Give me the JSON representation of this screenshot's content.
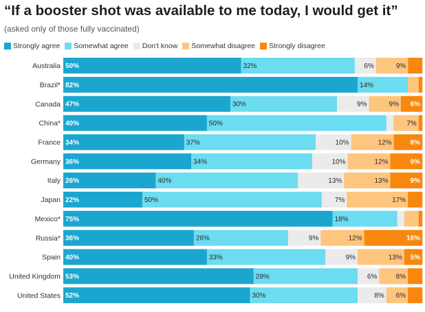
{
  "chart_data": {
    "type": "bar",
    "orientation": "horizontal",
    "stacked": "100%",
    "title": "“If a booster shot was available to me today, I would get it”",
    "subtitle": "(asked only of those fully vaccinated)",
    "legend_position": "top",
    "grid": false,
    "categories": [
      "Australia",
      "Brazil*",
      "Canada",
      "China*",
      "France",
      "Germany",
      "Italy",
      "Japan",
      "Mexico*",
      "Russia*",
      "Spain",
      "United Kingdom",
      "United States"
    ],
    "series": [
      {
        "name": "Strongly agree",
        "color": "#1ba6cf",
        "values": [
          50,
          82,
          47,
          40,
          34,
          36,
          26,
          22,
          75,
          36,
          40,
          53,
          52
        ],
        "labels": [
          "50%",
          "82%",
          "47%",
          "40%",
          "34%",
          "36%",
          "26%",
          "22%",
          "75%",
          "36%",
          "40%",
          "53%",
          "52%"
        ]
      },
      {
        "name": "Somewhat agree",
        "color": "#6cdcf0",
        "values": [
          32,
          14,
          30,
          50,
          37,
          34,
          40,
          50,
          18,
          26,
          33,
          29,
          30
        ],
        "labels": [
          "32%",
          "14%",
          "30%",
          "50%",
          "37%",
          "34%",
          "40%",
          "50%",
          "18%",
          "26%",
          "33%",
          "29%",
          "30%"
        ]
      },
      {
        "name": "Don't know",
        "color": "#ebebeb",
        "values": [
          6,
          0,
          9,
          2,
          10,
          10,
          13,
          7,
          2,
          9,
          9,
          6,
          8
        ],
        "labels": [
          "6%",
          "",
          "9%",
          "",
          "10%",
          "10%",
          "13%",
          "7%",
          "",
          "9%",
          "9%",
          "6%",
          "8%"
        ]
      },
      {
        "name": "Somewhat disagree",
        "color": "#fec57e",
        "values": [
          9,
          3,
          9,
          7,
          12,
          12,
          13,
          17,
          4,
          12,
          13,
          8,
          6
        ],
        "labels": [
          "9%",
          "",
          "9%",
          "7%",
          "12%",
          "12%",
          "13%",
          "17%",
          "",
          "12%",
          "13%",
          "8%",
          "6%"
        ]
      },
      {
        "name": "Strongly disagree",
        "color": "#f7880d",
        "values": [
          4,
          1,
          6,
          1,
          8,
          9,
          9,
          4,
          1,
          16,
          5,
          4,
          4
        ],
        "labels": [
          "",
          "",
          "6%",
          "",
          "8%",
          "9%",
          "9%",
          "",
          "",
          "16%",
          "5%",
          "",
          ""
        ]
      }
    ],
    "xlim": [
      0,
      100
    ]
  }
}
